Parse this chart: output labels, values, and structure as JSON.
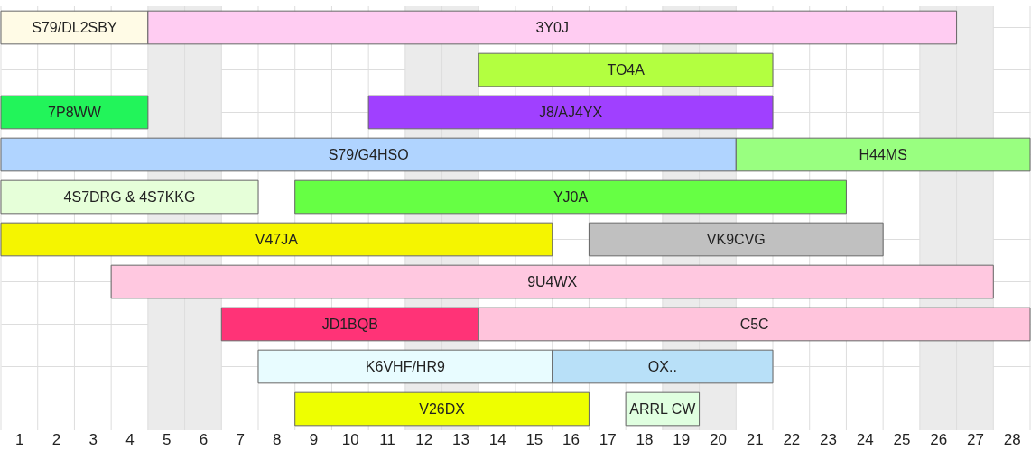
{
  "chart_data": {
    "type": "bar",
    "orientation": "horizontal",
    "categories": [
      null,
      null,
      null,
      null,
      null,
      null,
      null,
      null,
      null,
      null
    ],
    "series": [
      {
        "values": [
          4,
          8,
          4,
          20,
          7,
          15,
          24,
          7,
          8,
          8
        ],
        "base": [
          0.5,
          13.5,
          0.5,
          0.5,
          0.5,
          0.5,
          3.5,
          6.5,
          7.5,
          8.5
        ],
        "colors": [
          "#fffbe6",
          "#b3ff40",
          "#22f45a",
          "#b0d4ff",
          "#e6ffd9",
          "#f5f500",
          "#ffc8e0",
          "#ff3377",
          "#e8fcff",
          "#eeff00"
        ]
      },
      {
        "values": [
          22,
          null,
          11,
          8,
          15,
          8,
          null,
          15,
          6,
          2
        ],
        "base": [
          4.5,
          null,
          10.5,
          20.5,
          8.5,
          16.5,
          null,
          13.5,
          15.5,
          17.5
        ],
        "colors": [
          "#ffccf2",
          null,
          "#a040ff",
          "#99ff80",
          "#66ff44",
          "#c0c0c0",
          null,
          "#ffc4dc",
          "#b8e0f8",
          "#e0ffe0"
        ]
      }
    ],
    "xlim": [
      0.5,
      28.5
    ],
    "xticks": [
      1,
      2,
      3,
      4,
      5,
      6,
      7,
      8,
      9,
      10,
      11,
      12,
      13,
      14,
      15,
      16,
      17,
      18,
      19,
      20,
      21,
      22,
      23,
      24,
      25,
      26,
      27,
      28
    ],
    "bands": [
      {
        "axis": "x",
        "from": 4.5,
        "to": 6.5,
        "color": "#ebebeb"
      },
      {
        "axis": "x",
        "from": 11.5,
        "to": 13.5,
        "color": "#ebebeb"
      },
      {
        "axis": "x",
        "from": 18.5,
        "to": 20.5,
        "color": "#ebebeb"
      },
      {
        "axis": "x",
        "from": 25.5,
        "to": 27.5,
        "color": "#ebebeb"
      }
    ],
    "annotations": [
      "S79/DL2SBY",
      "TO4A",
      "7P8WW",
      "S79/G4HSO",
      "4S7DRG & 4S7KKG",
      "V47JA",
      "9U4WX",
      "JD1BQB",
      "K6VHF/HR9",
      "V26DX",
      "3Y0J",
      "J8/AJ4YX",
      "H44MS",
      "YJ0A",
      "VK9CVG",
      "C5C",
      "OX..",
      "ARRL CW"
    ],
    "grid": true,
    "tick_labels": "x"
  }
}
